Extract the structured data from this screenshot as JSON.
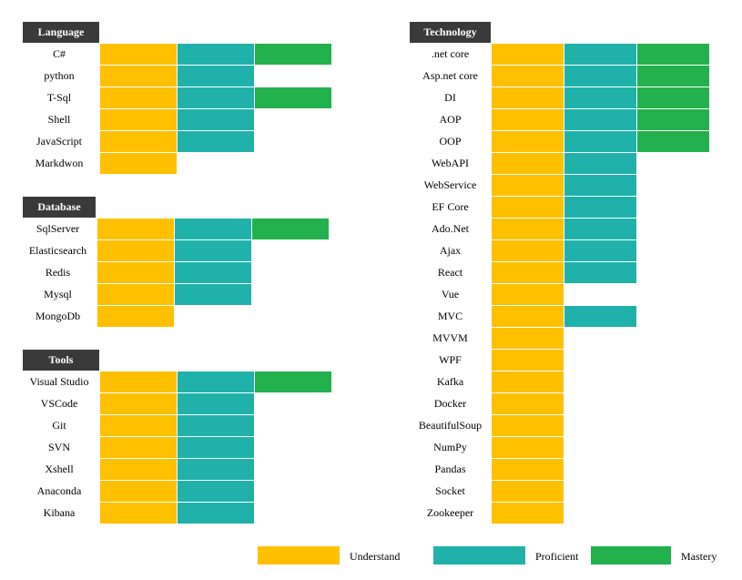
{
  "colors": {
    "understand": "#FFC000",
    "proficient": "#20B2AA",
    "mastery": "#22B14C"
  },
  "chart_data": [
    {
      "type": "table",
      "title": "Language",
      "levels": [
        "Understand",
        "Proficient",
        "Mastery"
      ],
      "rows": [
        {
          "label": "C#",
          "level": 3
        },
        {
          "label": "python",
          "level": 2
        },
        {
          "label": "T-Sql",
          "level": 3
        },
        {
          "label": "Shell",
          "level": 2
        },
        {
          "label": "JavaScript",
          "level": 2
        },
        {
          "label": "Markdwon",
          "level": 1
        }
      ]
    },
    {
      "type": "table",
      "title": "Database",
      "levels": [
        "Understand",
        "Proficient",
        "Mastery"
      ],
      "rows": [
        {
          "label": "SqlServer",
          "level": 3
        },
        {
          "label": "Elasticsearch",
          "level": 2
        },
        {
          "label": "Redis",
          "level": 2
        },
        {
          "label": "Mysql",
          "level": 2
        },
        {
          "label": "MongoDb",
          "level": 1
        }
      ]
    },
    {
      "type": "table",
      "title": "Tools",
      "levels": [
        "Understand",
        "Proficient",
        "Mastery"
      ],
      "rows": [
        {
          "label": "Visual Studio",
          "level": 3
        },
        {
          "label": "VSCode",
          "level": 2
        },
        {
          "label": "Git",
          "level": 2
        },
        {
          "label": "SVN",
          "level": 2
        },
        {
          "label": "Xshell",
          "level": 2
        },
        {
          "label": "Anaconda",
          "level": 2
        },
        {
          "label": "Kibana",
          "level": 2
        }
      ]
    },
    {
      "type": "table",
      "title": "Technology",
      "levels": [
        "Understand",
        "Proficient",
        "Mastery"
      ],
      "rows": [
        {
          "label": ".net core",
          "level": 3
        },
        {
          "label": "Asp.net core",
          "level": 3
        },
        {
          "label": "DI",
          "level": 3
        },
        {
          "label": "AOP",
          "level": 3
        },
        {
          "label": "OOP",
          "level": 3
        },
        {
          "label": "WebAPI",
          "level": 2
        },
        {
          "label": "WebService",
          "level": 2
        },
        {
          "label": "EF Core",
          "level": 2
        },
        {
          "label": "Ado.Net",
          "level": 2
        },
        {
          "label": "Ajax",
          "level": 2
        },
        {
          "label": "React",
          "level": 2
        },
        {
          "label": "Vue",
          "level": 1
        },
        {
          "label": "MVC",
          "level": 2
        },
        {
          "label": "MVVM",
          "level": 1
        },
        {
          "label": "WPF",
          "level": 1
        },
        {
          "label": "Kafka",
          "level": 1
        },
        {
          "label": "Docker",
          "level": 1
        },
        {
          "label": "BeautifulSoup",
          "level": 1
        },
        {
          "label": "NumPy",
          "level": 1
        },
        {
          "label": "Pandas",
          "level": 1
        },
        {
          "label": "Socket",
          "level": 1
        },
        {
          "label": "Zookeeper",
          "level": 1
        }
      ]
    }
  ],
  "legend": [
    {
      "label": "Understand",
      "color": "#FFC000"
    },
    {
      "label": "Proficient",
      "color": "#20B2AA"
    },
    {
      "label": "Mastery",
      "color": "#22B14C"
    }
  ]
}
